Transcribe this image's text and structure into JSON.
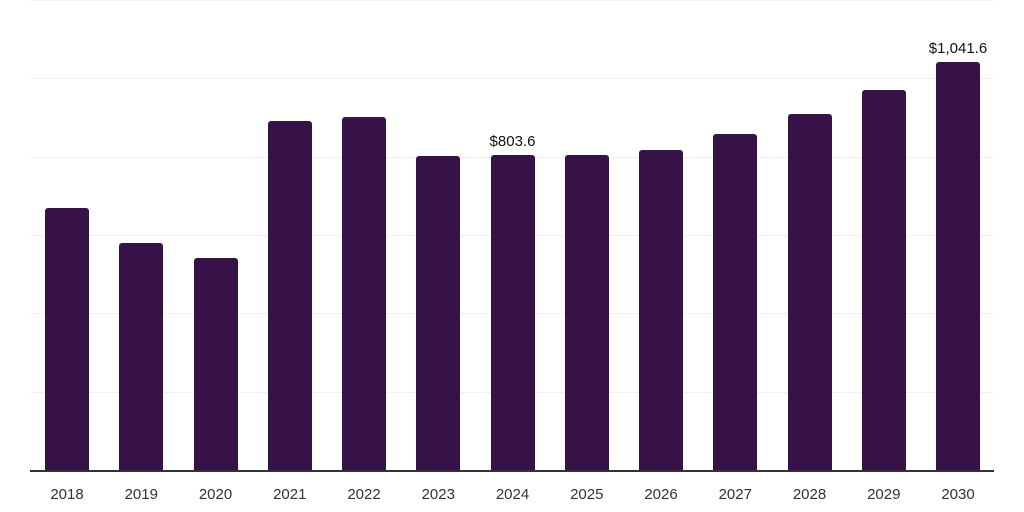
{
  "chart_data": {
    "type": "bar",
    "title": "",
    "xlabel": "",
    "ylabel": "",
    "categories": [
      "2018",
      "2019",
      "2020",
      "2021",
      "2022",
      "2023",
      "2024",
      "2025",
      "2026",
      "2027",
      "2028",
      "2029",
      "2030"
    ],
    "values": [
      669,
      580,
      541,
      891,
      901,
      802,
      803.6,
      804,
      817,
      858,
      909,
      970,
      1041.6
    ],
    "data_labels": [
      {
        "category": "2024",
        "text": "$803.6"
      },
      {
        "category": "2030",
        "text": "$1,041.6"
      }
    ],
    "ylim": [
      0,
      1200
    ],
    "gridlines": [
      0,
      200,
      400,
      600,
      800,
      1000,
      1200
    ],
    "grid": true,
    "legend": null,
    "bar_color": "#371249",
    "y_axis_labels_visible": false
  }
}
